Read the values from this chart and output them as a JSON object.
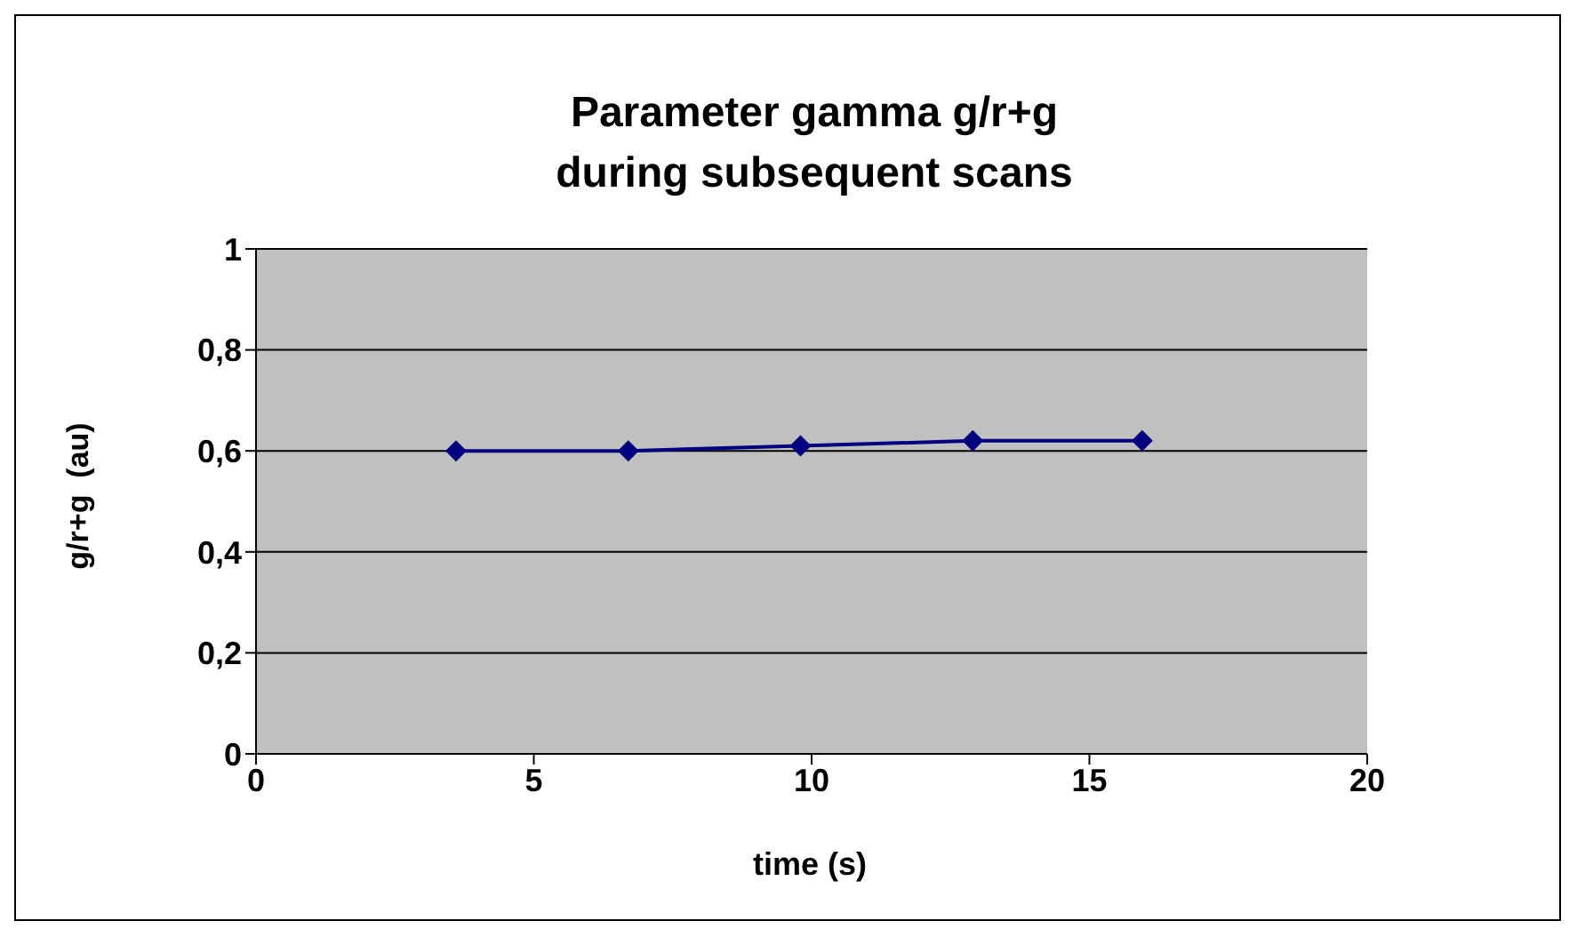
{
  "chart_data": {
    "type": "line",
    "title": "Parameter gamma g/r+g\nduring subsequent scans",
    "xlabel": "time (s)",
    "ylabel": "g/r+g  (au)",
    "x": [
      3.6,
      6.7,
      9.8,
      12.9,
      15.95
    ],
    "series": [
      {
        "color": "#000080",
        "values": [
          0.6,
          0.6,
          0.61,
          0.62,
          0.62
        ]
      }
    ],
    "xlim": [
      0,
      20
    ],
    "xticks": [
      0,
      5,
      10,
      15,
      20
    ],
    "ylim": [
      0,
      1
    ],
    "yticks": [
      0,
      {
        "value": 0.2,
        "label": "0,2"
      },
      {
        "value": 0.4,
        "label": "0,4"
      },
      {
        "value": 0.6,
        "label": "0,6"
      },
      {
        "value": 0.8,
        "label": "0,8"
      },
      1
    ],
    "grid": "y",
    "marker": "diamond",
    "line_style": "solid",
    "legend": false
  }
}
